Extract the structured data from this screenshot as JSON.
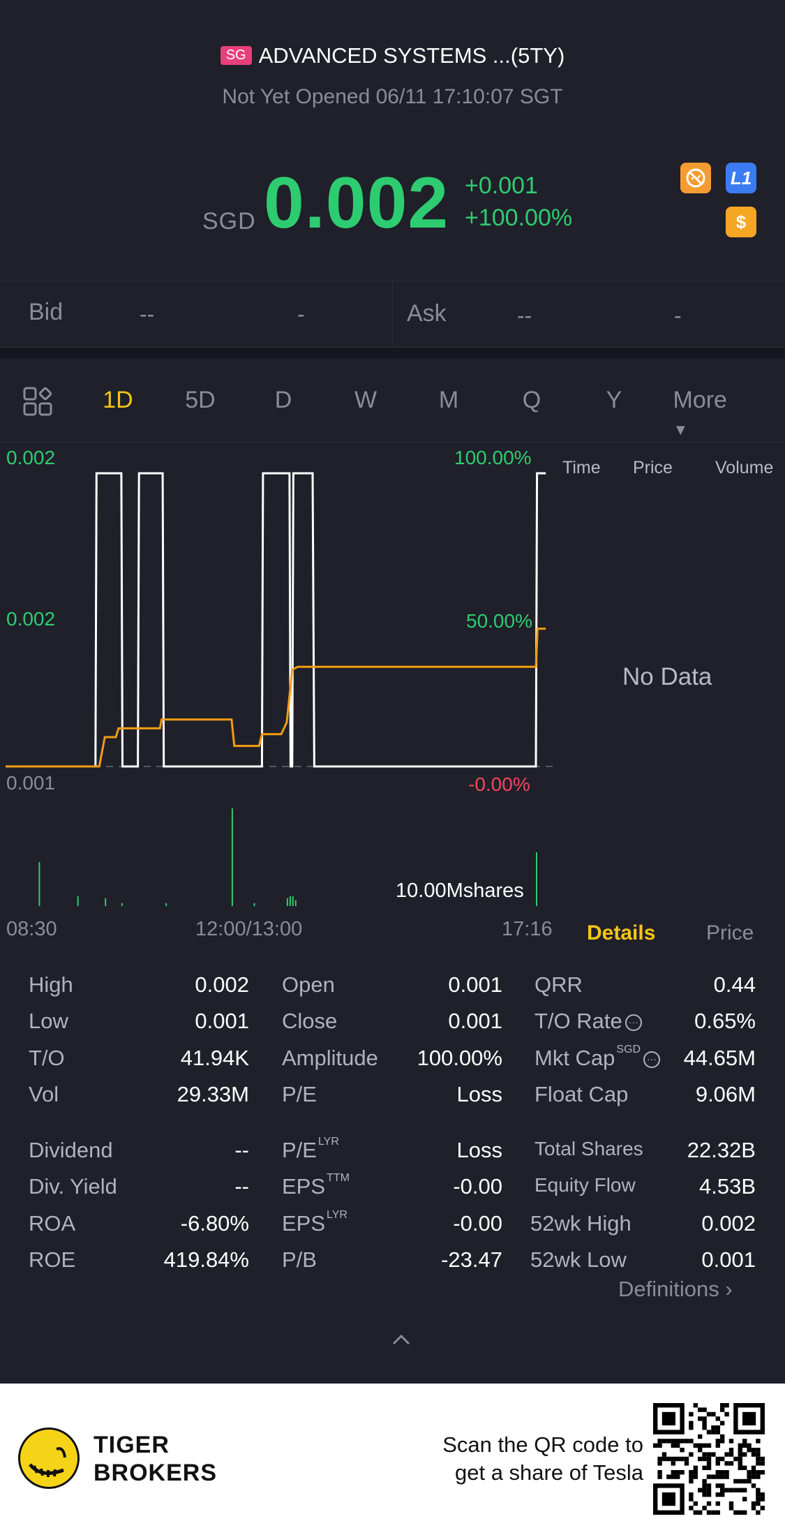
{
  "header": {
    "market_badge": "SG",
    "title": "ADVANCED SYSTEMS ...(5TY)",
    "status": "Not Yet Opened 06/11 17:10:07 SGT"
  },
  "quote": {
    "currency": "SGD",
    "price": "0.002",
    "change": "+0.001",
    "change_pct": "+100.00%",
    "badge_l1": "L1",
    "badge_dollar": "$"
  },
  "bidask": {
    "bid_label": "Bid",
    "bid_price": "--",
    "bid_size": "-",
    "ask_label": "Ask",
    "ask_price": "--",
    "ask_size": "-"
  },
  "tabs": [
    "1D",
    "5D",
    "D",
    "W",
    "M",
    "Q",
    "Y",
    "More"
  ],
  "active_tab": "1D",
  "chart": {
    "y_left": [
      "0.002",
      "0.002",
      "0.001"
    ],
    "y_right": [
      "100.00%",
      "50.00%",
      "-0.00%"
    ],
    "side_headers": [
      "Time",
      "Price",
      "Volume"
    ],
    "no_data": "No Data",
    "volume_label": "10.00Mshares",
    "time_labels": [
      "08:30",
      "12:00/13:00",
      "17:16"
    ]
  },
  "chart_data": {
    "type": "line",
    "series": [
      {
        "name": "",
        "color": "#ffffff",
        "points": [
          [
            0,
            0
          ],
          [
            0.163,
            0
          ],
          [
            0.165,
            1
          ],
          [
            0.21,
            1
          ],
          [
            0.212,
            0
          ],
          [
            0.24,
            0
          ],
          [
            0.242,
            1
          ],
          [
            0.285,
            1
          ],
          [
            0.287,
            0
          ],
          [
            0.465,
            0
          ],
          [
            0.467,
            1
          ],
          [
            0.515,
            1
          ],
          [
            0.517,
            0
          ],
          [
            0.52,
            0
          ],
          [
            0.522,
            1
          ],
          [
            0.557,
            1
          ],
          [
            0.56,
            0
          ],
          [
            0.962,
            0
          ],
          [
            0.964,
            1
          ],
          [
            0.98,
            1
          ]
        ]
      },
      {
        "name": "",
        "color": "#f39c12",
        "points": [
          [
            0,
            0
          ],
          [
            0.17,
            0
          ],
          [
            0.18,
            0.1
          ],
          [
            0.2,
            0.1
          ],
          [
            0.205,
            0.13
          ],
          [
            0.28,
            0.13
          ],
          [
            0.283,
            0.16
          ],
          [
            0.41,
            0.16
          ],
          [
            0.415,
            0.07
          ],
          [
            0.46,
            0.07
          ],
          [
            0.465,
            0.11
          ],
          [
            0.5,
            0.11
          ],
          [
            0.51,
            0.15
          ],
          [
            0.52,
            0.33
          ],
          [
            0.53,
            0.34
          ],
          [
            0.962,
            0.34
          ],
          [
            0.965,
            0.47
          ],
          [
            0.98,
            0.47
          ]
        ]
      }
    ],
    "volume": [
      [
        0.06,
        0.45
      ],
      [
        0.13,
        0.1
      ],
      [
        0.18,
        0.08
      ],
      [
        0.21,
        0.03
      ],
      [
        0.29,
        0.03
      ],
      [
        0.41,
        1.0
      ],
      [
        0.45,
        0.03
      ],
      [
        0.51,
        0.08
      ],
      [
        0.515,
        0.1
      ],
      [
        0.52,
        0.1
      ],
      [
        0.525,
        0.06
      ],
      [
        0.962,
        0.55
      ]
    ]
  },
  "details_tabs": {
    "details": "Details",
    "price": "Price"
  },
  "stats": {
    "col1": [
      {
        "label": "High",
        "value": "0.002"
      },
      {
        "label": "Low",
        "value": "0.001"
      },
      {
        "label": "T/O",
        "value": "41.94K"
      },
      {
        "label": "Vol",
        "value": "29.33M"
      },
      {
        "label": "Dividend",
        "value": "--"
      },
      {
        "label": "Div. Yield",
        "value": "--"
      },
      {
        "label": "ROA",
        "value": "-6.80%"
      },
      {
        "label": "ROE",
        "value": "419.84%"
      }
    ],
    "col2": [
      {
        "label": "Open",
        "value": "0.001",
        "sup": ""
      },
      {
        "label": "Close",
        "value": "0.001",
        "sup": ""
      },
      {
        "label": "Amplitude",
        "value": "100.00%",
        "sup": ""
      },
      {
        "label": "P/E",
        "value": "Loss",
        "sup": ""
      },
      {
        "label": "P/E",
        "value": "Loss",
        "sup": "LYR"
      },
      {
        "label": "EPS",
        "value": "-0.00",
        "sup": "TTM"
      },
      {
        "label": "EPS",
        "value": "-0.00",
        "sup": "LYR"
      },
      {
        "label": "P/B",
        "value": "-23.47",
        "sup": ""
      }
    ],
    "col3": [
      {
        "label": "QRR",
        "value": "0.44",
        "sup": ""
      },
      {
        "label": "T/O Rate",
        "value": "0.65%",
        "sup": ""
      },
      {
        "label": "Mkt Cap",
        "value": "44.65M",
        "sup": "SGD"
      },
      {
        "label": "Float Cap",
        "value": "9.06M",
        "sup": ""
      },
      {
        "label": "Total Shares",
        "value": "22.32B",
        "sup": ""
      },
      {
        "label": "Equity Flow",
        "value": "4.53B",
        "sup": ""
      },
      {
        "label": "52wk High",
        "value": "0.002",
        "sup": ""
      },
      {
        "label": "52wk Low",
        "value": "0.001",
        "sup": ""
      }
    ],
    "definitions": "Definitions"
  },
  "footer": {
    "brand_line1": "TIGER",
    "brand_line2": "BROKERS",
    "promo_line1": "Scan the QR code to",
    "promo_line2": "get a share of Tesla"
  }
}
